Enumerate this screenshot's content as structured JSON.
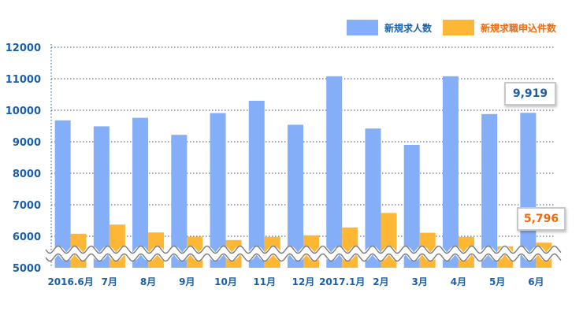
{
  "colors": {
    "blue": "#84aef7",
    "orange": "#fdb735",
    "text_blue": "#1b5faa",
    "text_orange": "#ee6b12",
    "grid": "#2a4f8f"
  },
  "legend": [
    {
      "label": "新規求人数",
      "color": "#84aef7"
    },
    {
      "label": "新規求職申込件数",
      "color": "#fdb735"
    }
  ],
  "callouts": {
    "blue": "9,919",
    "orange": "5,796"
  },
  "chart_data": {
    "type": "bar",
    "categories": [
      "2016.6月",
      "7月",
      "8月",
      "9月",
      "10月",
      "11月",
      "12月",
      "2017.1月",
      "2月",
      "3月",
      "4月",
      "5月",
      "6月"
    ],
    "series": [
      {
        "name": "新規求人数",
        "values": [
          9680,
          9490,
          9760,
          9220,
          9910,
          10300,
          9540,
          11080,
          9420,
          8900,
          11080,
          9880,
          9919
        ]
      },
      {
        "name": "新規求職申込件数",
        "values": [
          6080,
          6370,
          6120,
          5990,
          5880,
          5980,
          6030,
          6280,
          6740,
          6110,
          5980,
          5680,
          5796
        ]
      }
    ],
    "ylim": [
      5000,
      12000
    ],
    "yticks": [
      "5000",
      "6000",
      "7000",
      "8000",
      "9000",
      "10000",
      "11000",
      "12000"
    ],
    "axis_break": true,
    "grid": true,
    "legend_position": "top-right"
  }
}
